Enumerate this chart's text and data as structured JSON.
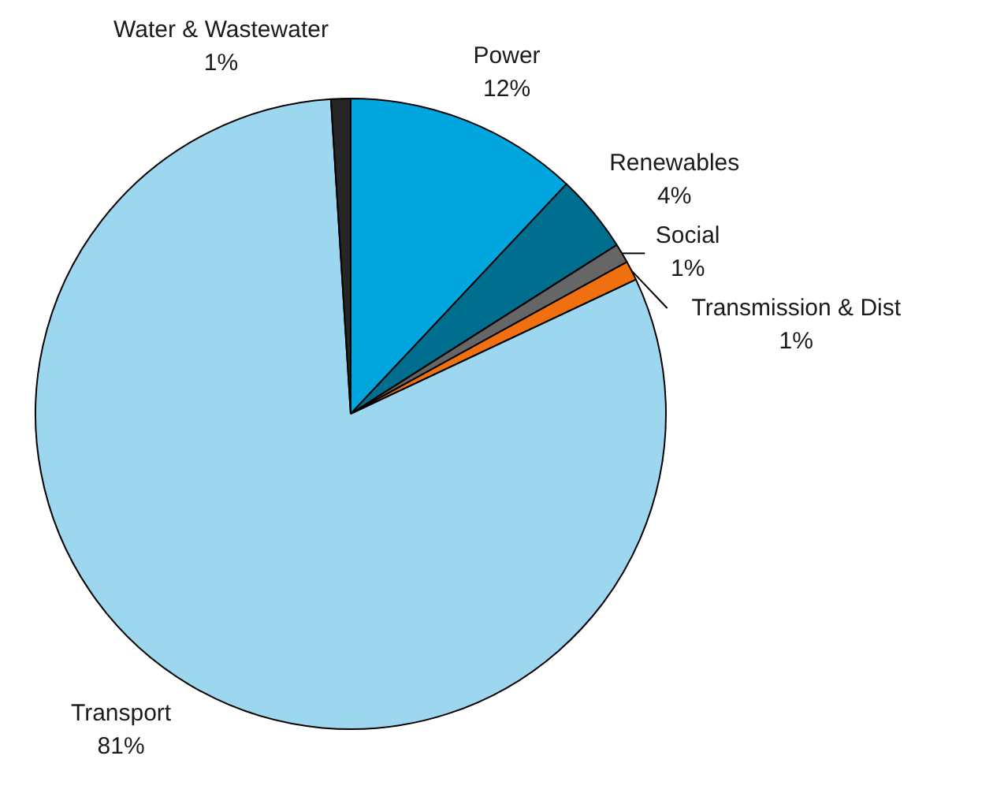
{
  "chart_data": {
    "type": "pie",
    "categories": [
      "Power",
      "Renewables",
      "Social",
      "Transmission & Dist",
      "Transport",
      "Water & Wastewater"
    ],
    "values": [
      12,
      4,
      1,
      1,
      81,
      1
    ],
    "colors": [
      "#00a6dd",
      "#006e8f",
      "#666666",
      "#f07010",
      "#9dd7ef",
      "#262626"
    ],
    "value_labels": [
      "12%",
      "4%",
      "1%",
      "1%",
      "81%",
      "1%"
    ]
  }
}
